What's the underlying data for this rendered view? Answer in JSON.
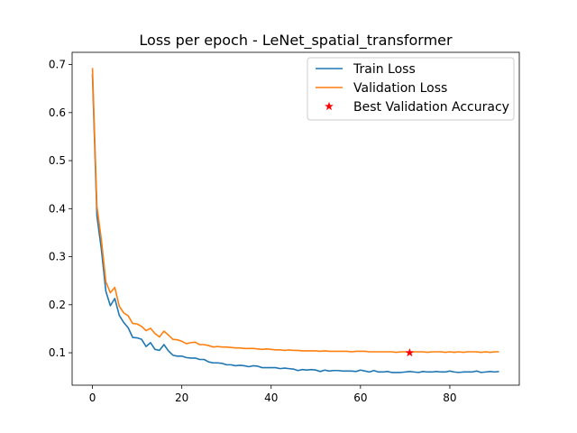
{
  "chart_data": {
    "type": "line",
    "title": "Loss per epoch - LeNet_spatial_transformer",
    "xlabel": "",
    "ylabel": "",
    "xlim": [
      -4.55,
      95.55
    ],
    "ylim": [
      0.0325,
      0.7255
    ],
    "xticks": [
      0,
      20,
      40,
      60,
      80
    ],
    "yticks": [
      0.1,
      0.2,
      0.3,
      0.4,
      0.5,
      0.6,
      0.7
    ],
    "ytick_labels": [
      "0.1",
      "0.2",
      "0.3",
      "0.4",
      "0.5",
      "0.6",
      "0.7"
    ],
    "grid": false,
    "legend_position": "top-right",
    "series": [
      {
        "name": "Train Loss",
        "color": "#1f77b4",
        "x": [
          0,
          1,
          2,
          3,
          4,
          5,
          6,
          7,
          8,
          9,
          10,
          11,
          12,
          13,
          14,
          15,
          16,
          17,
          18,
          19,
          20,
          21,
          22,
          23,
          24,
          25,
          26,
          27,
          28,
          29,
          30,
          31,
          32,
          33,
          34,
          35,
          36,
          37,
          38,
          39,
          40,
          41,
          42,
          43,
          44,
          45,
          46,
          47,
          48,
          49,
          50,
          51,
          52,
          53,
          54,
          55,
          56,
          57,
          58,
          59,
          60,
          61,
          62,
          63,
          64,
          65,
          66,
          67,
          68,
          69,
          70,
          71,
          72,
          73,
          74,
          75,
          76,
          77,
          78,
          79,
          80,
          81,
          82,
          83,
          84,
          85,
          86,
          87,
          88,
          89,
          90,
          91
        ],
        "values": [
          0.68,
          0.385,
          0.315,
          0.228,
          0.198,
          0.213,
          0.178,
          0.163,
          0.152,
          0.132,
          0.131,
          0.128,
          0.113,
          0.121,
          0.107,
          0.105,
          0.117,
          0.104,
          0.095,
          0.093,
          0.093,
          0.09,
          0.089,
          0.089,
          0.086,
          0.086,
          0.081,
          0.079,
          0.079,
          0.078,
          0.075,
          0.075,
          0.073,
          0.074,
          0.073,
          0.071,
          0.073,
          0.072,
          0.069,
          0.069,
          0.069,
          0.069,
          0.067,
          0.068,
          0.067,
          0.066,
          0.063,
          0.065,
          0.064,
          0.065,
          0.064,
          0.061,
          0.064,
          0.062,
          0.063,
          0.063,
          0.062,
          0.062,
          0.062,
          0.061,
          0.064,
          0.062,
          0.06,
          0.063,
          0.06,
          0.06,
          0.061,
          0.059,
          0.059,
          0.059,
          0.06,
          0.061,
          0.06,
          0.059,
          0.061,
          0.06,
          0.06,
          0.061,
          0.06,
          0.06,
          0.062,
          0.06,
          0.059,
          0.06,
          0.06,
          0.06,
          0.062,
          0.059,
          0.06,
          0.061,
          0.06,
          0.061
        ]
      },
      {
        "name": "Validation Loss",
        "color": "#ff7f0e",
        "x": [
          0,
          1,
          2,
          3,
          4,
          5,
          6,
          7,
          8,
          9,
          10,
          11,
          12,
          13,
          14,
          15,
          16,
          17,
          18,
          19,
          20,
          21,
          22,
          23,
          24,
          25,
          26,
          27,
          28,
          29,
          30,
          31,
          32,
          33,
          34,
          35,
          36,
          37,
          38,
          39,
          40,
          41,
          42,
          43,
          44,
          45,
          46,
          47,
          48,
          49,
          50,
          51,
          52,
          53,
          54,
          55,
          56,
          57,
          58,
          59,
          60,
          61,
          62,
          63,
          64,
          65,
          66,
          67,
          68,
          69,
          70,
          71,
          72,
          73,
          74,
          75,
          76,
          77,
          78,
          79,
          80,
          81,
          82,
          83,
          84,
          85,
          86,
          87,
          88,
          89,
          90,
          91
        ],
        "values": [
          0.693,
          0.405,
          0.335,
          0.248,
          0.225,
          0.236,
          0.197,
          0.183,
          0.177,
          0.161,
          0.16,
          0.155,
          0.146,
          0.151,
          0.14,
          0.133,
          0.145,
          0.137,
          0.128,
          0.127,
          0.124,
          0.119,
          0.121,
          0.122,
          0.117,
          0.117,
          0.115,
          0.112,
          0.113,
          0.112,
          0.112,
          0.111,
          0.11,
          0.11,
          0.109,
          0.109,
          0.109,
          0.108,
          0.107,
          0.108,
          0.107,
          0.106,
          0.106,
          0.105,
          0.106,
          0.105,
          0.105,
          0.104,
          0.104,
          0.104,
          0.104,
          0.103,
          0.104,
          0.103,
          0.103,
          0.103,
          0.103,
          0.103,
          0.102,
          0.103,
          0.103,
          0.103,
          0.102,
          0.102,
          0.102,
          0.102,
          0.102,
          0.102,
          0.101,
          0.102,
          0.102,
          0.101,
          0.102,
          0.102,
          0.102,
          0.101,
          0.102,
          0.102,
          0.102,
          0.101,
          0.102,
          0.101,
          0.102,
          0.101,
          0.102,
          0.102,
          0.102,
          0.101,
          0.102,
          0.101,
          0.102,
          0.102
        ]
      }
    ],
    "markers": [
      {
        "name": "Best Validation Accuracy",
        "color": "#ff0000",
        "shape": "star",
        "x": 71,
        "y": 0.1
      }
    ]
  }
}
